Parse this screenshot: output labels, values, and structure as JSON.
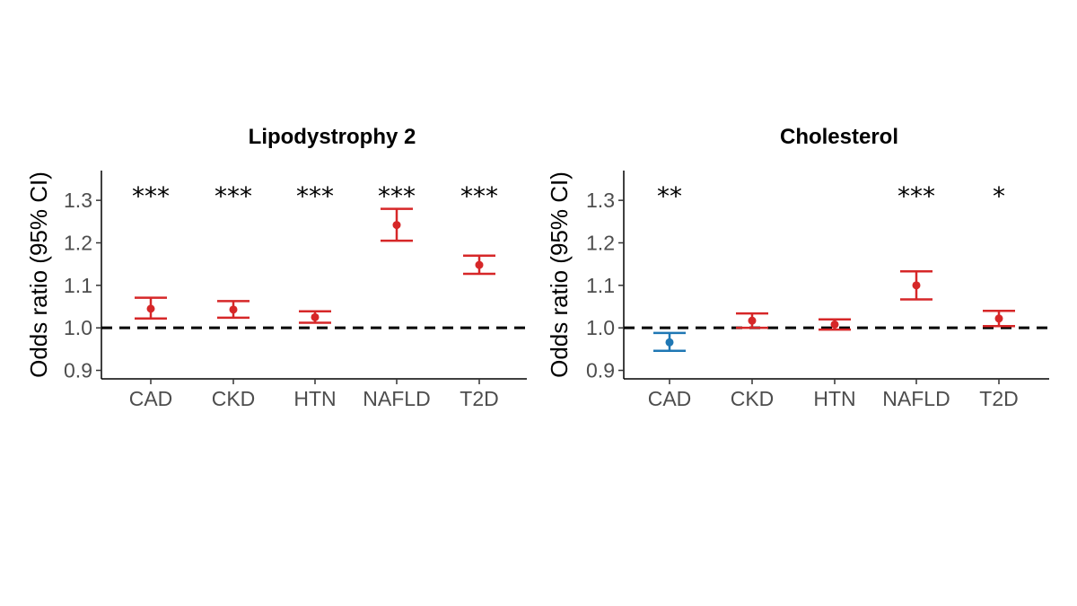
{
  "colors": {
    "significant_up": "#d62728",
    "significant_down": "#1f77b4",
    "axis": "#000000",
    "reference": "#000000"
  },
  "chart_data": [
    {
      "type": "errorbar",
      "title": "Lipodystrophy 2",
      "ylabel": "Odds ratio (95% CI)",
      "xlabel": "",
      "categories": [
        "CAD",
        "CKD",
        "HTN",
        "NAFLD",
        "T2D"
      ],
      "estimate": [
        1.045,
        1.043,
        1.025,
        1.242,
        1.148
      ],
      "lower": [
        1.022,
        1.024,
        1.012,
        1.205,
        1.127
      ],
      "upper": [
        1.071,
        1.063,
        1.039,
        1.28,
        1.17
      ],
      "significance": [
        "***",
        "***",
        "***",
        "***",
        "***"
      ],
      "direction": [
        "up",
        "up",
        "up",
        "up",
        "up"
      ],
      "yticks": [
        0.9,
        1.0,
        1.1,
        1.2,
        1.3
      ],
      "ytick_labels": [
        "0.9",
        "1.0",
        "1.1",
        "1.2",
        "1.3"
      ],
      "ylim": [
        0.88,
        1.37
      ],
      "reference_line": 1.0
    },
    {
      "type": "errorbar",
      "title": "Cholesterol",
      "ylabel": "Odds ratio (95% CI)",
      "xlabel": "",
      "categories": [
        "CAD",
        "CKD",
        "HTN",
        "NAFLD",
        "T2D"
      ],
      "estimate": [
        0.966,
        1.017,
        1.008,
        1.1,
        1.022
      ],
      "lower": [
        0.946,
        1.0,
        0.996,
        1.067,
        1.004
      ],
      "upper": [
        0.988,
        1.034,
        1.02,
        1.133,
        1.04
      ],
      "significance": [
        "**",
        "",
        "",
        "***",
        "*"
      ],
      "direction": [
        "down",
        "up",
        "up",
        "up",
        "up"
      ],
      "yticks": [
        0.9,
        1.0,
        1.1,
        1.2,
        1.3
      ],
      "ytick_labels": [
        "0.9",
        "1.0",
        "1.1",
        "1.2",
        "1.3"
      ],
      "ylim": [
        0.88,
        1.37
      ],
      "reference_line": 1.0
    }
  ]
}
